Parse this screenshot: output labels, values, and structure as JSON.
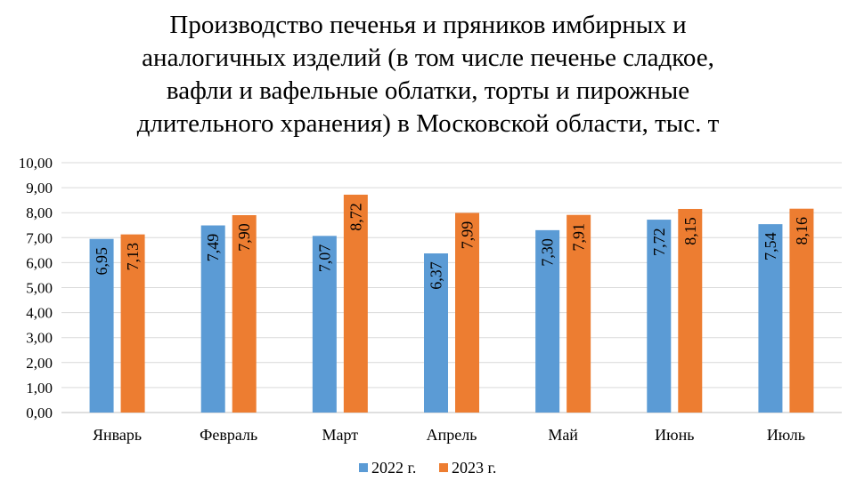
{
  "chart_data": {
    "type": "bar",
    "title": "Производство печенья и пряников имбирных и аналогичных изделий  (в том числе печенье сладкое, вафли и вафельные облатки, торты и пирожные длительного хранения) в Московской области, тыс. т",
    "title_lines": [
      "Производство печенья и пряников имбирных и",
      "аналогичных изделий  (в том числе печенье сладкое,",
      "вафли и вафельные облатки, торты и пирожные",
      "длительного хранения) в Московской области, тыс. т"
    ],
    "categories": [
      "Январь",
      "Февраль",
      "Март",
      "Апрель",
      "Май",
      "Июнь",
      "Июль"
    ],
    "series": [
      {
        "name": "2022 г.",
        "color": "#5B9BD5",
        "values": [
          6.95,
          7.49,
          7.07,
          6.37,
          7.3,
          7.72,
          7.54
        ],
        "labels": [
          "6,95",
          "7,49",
          "7,07",
          "6,37",
          "7,30",
          "7,72",
          "7,54"
        ]
      },
      {
        "name": "2023 г.",
        "color": "#ED7D31",
        "values": [
          7.13,
          7.9,
          8.72,
          7.99,
          7.91,
          8.15,
          8.16
        ],
        "labels": [
          "7,13",
          "7,90",
          "8,72",
          "7,99",
          "7,91",
          "8,15",
          "8,16"
        ]
      }
    ],
    "ylim": [
      0,
      10
    ],
    "y_ticks": [
      0,
      1,
      2,
      3,
      4,
      5,
      6,
      7,
      8,
      9,
      10
    ],
    "y_tick_labels": [
      "0,00",
      "1,00",
      "2,00",
      "3,00",
      "4,00",
      "5,00",
      "6,00",
      "7,00",
      "8,00",
      "9,00",
      "10,00"
    ],
    "xlabel": "",
    "ylabel": "",
    "grid": true,
    "legend_position": "bottom",
    "data_labels": "inside-rotated"
  }
}
